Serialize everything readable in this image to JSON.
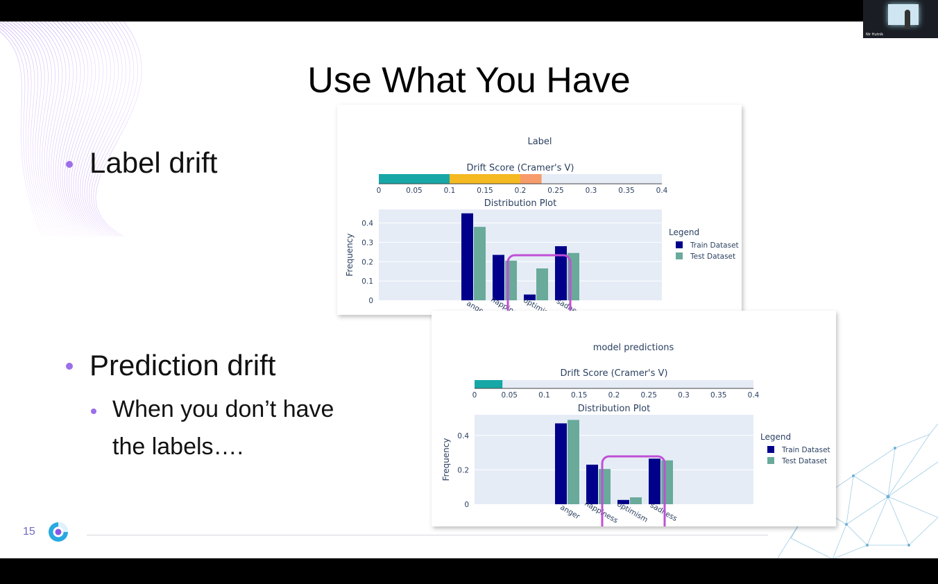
{
  "slide": {
    "title": "Use What You Have",
    "bullets": [
      {
        "text": "Label drift"
      },
      {
        "text": "Prediction drift"
      }
    ],
    "sub_bullet": {
      "line1": "When you don’t have",
      "line2": "the labels…."
    },
    "slide_number": "15"
  },
  "webcam": {
    "name": "Nir Hutnik"
  },
  "colors": {
    "accent": "#9b6fe8",
    "train": "#00008b",
    "test": "#69aa9b",
    "drift_teal": "#17a7a7",
    "drift_yellow": "#f5b921",
    "drift_orange": "#f79b6b",
    "highlight": "#c04fd6"
  },
  "chart_data": [
    {
      "type": "bar",
      "title": "Label",
      "drift_score": {
        "title": "Drift Score (Cramer's V)",
        "value": 0.23,
        "xlim": [
          0,
          0.4
        ],
        "ticks": [
          "0",
          "0.05",
          "0.1",
          "0.15",
          "0.2",
          "0.25",
          "0.3",
          "0.35",
          "0.4"
        ]
      },
      "distribution": {
        "title": "Distribution Plot",
        "ylabel": "Frequency",
        "yticks": [
          "0",
          "0.1",
          "0.2",
          "0.3",
          "0.4"
        ],
        "ylim": [
          0,
          0.47
        ],
        "categories": [
          "anger",
          "happiness",
          "optimism",
          "sadness"
        ],
        "series": [
          {
            "name": "Train Dataset",
            "values": [
              0.45,
              0.235,
              0.03,
              0.28
            ]
          },
          {
            "name": "Test Dataset",
            "values": [
              0.38,
              0.205,
              0.165,
              0.245
            ]
          }
        ],
        "legend_title": "Legend"
      }
    },
    {
      "type": "bar",
      "title": "model predictions",
      "drift_score": {
        "title": "Drift Score (Cramer's V)",
        "value": 0.04,
        "xlim": [
          0,
          0.4
        ],
        "ticks": [
          "0",
          "0.05",
          "0.1",
          "0.15",
          "0.2",
          "0.25",
          "0.3",
          "0.35",
          "0.4"
        ]
      },
      "distribution": {
        "title": "Distribution Plot",
        "ylabel": "Frequency",
        "yticks": [
          "0",
          "0.2",
          "0.4"
        ],
        "ylim": [
          0,
          0.52
        ],
        "categories": [
          "anger",
          "happiness",
          "optimism",
          "sadness"
        ],
        "series": [
          {
            "name": "Train Dataset",
            "values": [
              0.47,
              0.23,
              0.025,
              0.265
            ]
          },
          {
            "name": "Test Dataset",
            "values": [
              0.49,
              0.205,
              0.04,
              0.255
            ]
          }
        ],
        "legend_title": "Legend"
      }
    }
  ]
}
